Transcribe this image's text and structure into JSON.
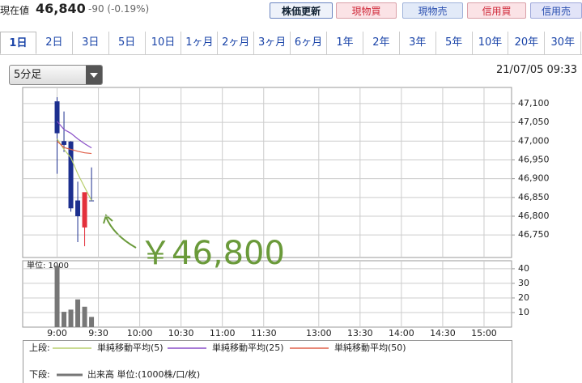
{
  "header": {
    "price_label": "現在値",
    "price": "46,840",
    "change": "-90 (-0.19%)",
    "buttons": [
      "株価更新",
      "現物買",
      "現物売",
      "信用買",
      "信用売"
    ]
  },
  "tabs": [
    "1日",
    "2日",
    "3日",
    "5日",
    "10日",
    "1ヶ月",
    "2ヶ月",
    "3ヶ月",
    "6ヶ月",
    "1年",
    "2年",
    "3年",
    "5年",
    "10年",
    "20年",
    "30年"
  ],
  "selected_tab": 0,
  "interval": "5分足",
  "timestamp": "21/07/05 09:33",
  "legend_upper": "上段:",
  "legend_lower": "下段:",
  "chart_data": [
    {
      "type": "candlestick",
      "annotation": "￥46,800",
      "x": [
        0,
        1,
        2,
        3,
        4,
        5
      ],
      "open": [
        47106,
        47000,
        46999,
        46842,
        46770,
        46842
      ],
      "high": [
        47117,
        47079,
        47000,
        46892,
        46860,
        46930
      ],
      "low": [
        46913,
        46971,
        46812,
        46731,
        46720,
        46840
      ],
      "close": [
        47021,
        46990,
        46821,
        46800,
        46864,
        46840
      ],
      "up_color": "#e3303c",
      "down_color": "#1c2f8f",
      "series": [
        {
          "name": "単純移動平均(5)",
          "color": "#b9cf6e",
          "values": [
            47006,
            46978,
            46956,
            46913,
            46877,
            46842
          ]
        },
        {
          "name": "単純移動平均(25)",
          "color": "#8a4fc8",
          "values": [
            47053,
            47031,
            47021,
            47006,
            46993,
            46982
          ]
        },
        {
          "name": "単純移動平均(50)",
          "color": "#e0604a",
          "values": [
            47000,
            46983,
            46978,
            46973,
            46969,
            46967
          ]
        }
      ],
      "xlim": [
        -5,
        66
      ],
      "ylim": [
        46690,
        47143
      ],
      "yticks": [
        {
          "value": 47100,
          "label": "47,100"
        },
        {
          "value": 47050,
          "label": "47,050"
        },
        {
          "value": 47000,
          "label": "47,000"
        },
        {
          "value": 46950,
          "label": "46,950"
        },
        {
          "value": 46900,
          "label": "46,900"
        },
        {
          "value": 46850,
          "label": "46,850"
        },
        {
          "value": 46800,
          "label": "46,800"
        },
        {
          "value": 46750,
          "label": "46,750"
        }
      ],
      "grid": true
    },
    {
      "type": "bar",
      "unit_label": "単位: 1000",
      "x": [
        0,
        1,
        2,
        3,
        4,
        5
      ],
      "series": [
        {
          "name": "出来高 単位:(1000株/口/枚)",
          "color": "#777777",
          "values": [
            42,
            10.5,
            12,
            19,
            14,
            7
          ]
        }
      ],
      "xlim": [
        -5,
        66
      ],
      "ylim": [
        0,
        45.5
      ],
      "yticks": [
        10,
        20,
        30,
        40
      ],
      "xticks": [
        {
          "value": 0,
          "label": "9:00"
        },
        {
          "value": 6,
          "label": "9:30"
        },
        {
          "value": 12,
          "label": "10:00"
        },
        {
          "value": 18,
          "label": "10:30"
        },
        {
          "value": 24,
          "label": "11:00"
        },
        {
          "value": 30,
          "label": "11:30"
        },
        {
          "value": 38,
          "label": "13:00"
        },
        {
          "value": 44,
          "label": "13:30"
        },
        {
          "value": 50,
          "label": "14:00"
        },
        {
          "value": 56,
          "label": "14:30"
        },
        {
          "value": 62,
          "label": "15:00"
        }
      ],
      "grid": true
    }
  ]
}
